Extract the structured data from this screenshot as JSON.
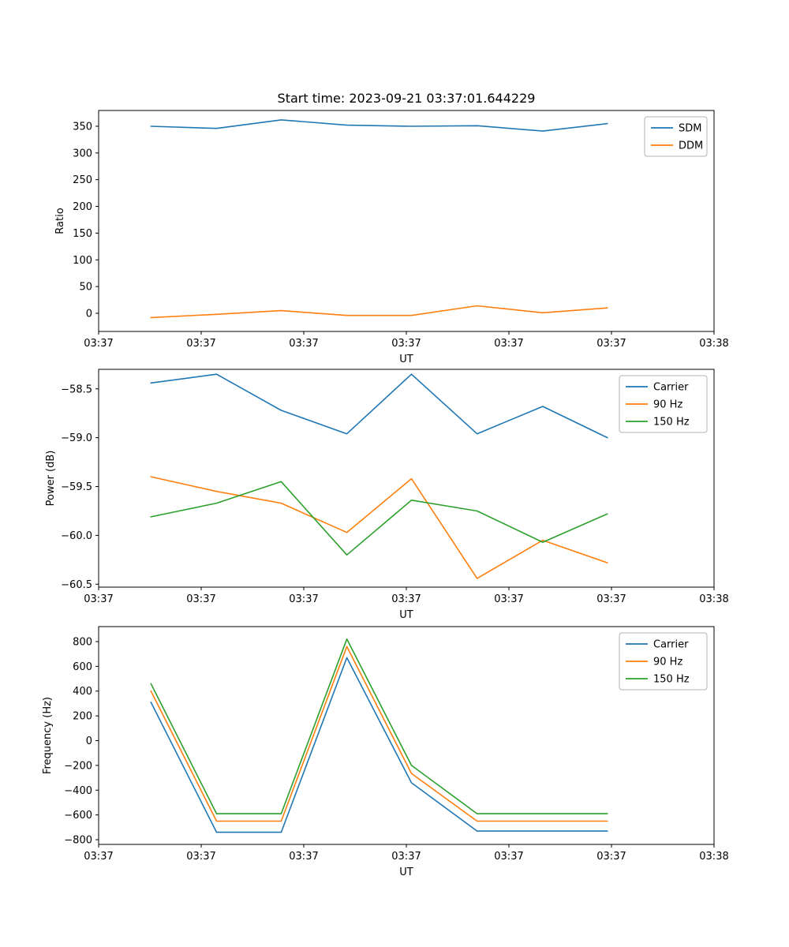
{
  "figure": {
    "title": "Start time: 2023-09-21 03:37:01.644229",
    "background": "#ffffff",
    "text_color": "#000000",
    "axis_color": "#000000",
    "legend_edge_color": "#b3b3b3"
  },
  "colors": {
    "blue": "#1f77b4",
    "orange": "#ff7f0e",
    "green": "#2ca02c"
  },
  "chart_data": [
    {
      "name": "ratio",
      "type": "line",
      "title": "Start time: 2023-09-21 03:37:01.644229",
      "xlabel": "UT",
      "ylabel": "Ratio",
      "legend_position": "upper right",
      "grid": false,
      "xlim": [
        0,
        60
      ],
      "ylim": [
        -34,
        379.5
      ],
      "x": [
        5.1,
        11.5,
        17.8,
        24.2,
        30.5,
        36.9,
        43.3,
        49.6
      ],
      "xtick_positions": [
        0,
        10,
        20,
        30,
        40,
        50,
        60
      ],
      "xtick_labels": [
        "03:37",
        "03:37",
        "03:37",
        "03:37",
        "03:37",
        "03:37",
        "03:38"
      ],
      "ytick_positions": [
        0,
        50,
        100,
        150,
        200,
        250,
        300,
        350
      ],
      "ytick_labels": [
        "0",
        "50",
        "100",
        "150",
        "200",
        "250",
        "300",
        "350"
      ],
      "series": [
        {
          "name": "SDM",
          "color": "#1f77b4",
          "values": [
            350,
            346,
            362,
            352,
            350,
            351,
            341,
            355
          ]
        },
        {
          "name": "DDM",
          "color": "#ff7f0e",
          "values": [
            -8,
            -2,
            5,
            -4,
            -4,
            14,
            1,
            10
          ]
        }
      ]
    },
    {
      "name": "power",
      "type": "line",
      "title": "",
      "xlabel": "UT",
      "ylabel": "Power (dB)",
      "legend_position": "upper right",
      "grid": false,
      "xlim": [
        0,
        60
      ],
      "ylim": [
        -60.53,
        -58.3
      ],
      "x": [
        5.1,
        11.5,
        17.8,
        24.2,
        30.5,
        36.9,
        43.3,
        49.6
      ],
      "xtick_positions": [
        0,
        10,
        20,
        30,
        40,
        50,
        60
      ],
      "xtick_labels": [
        "03:37",
        "03:37",
        "03:37",
        "03:37",
        "03:37",
        "03:37",
        "03:38"
      ],
      "ytick_positions": [
        -60.5,
        -60.0,
        -59.5,
        -59.0,
        -58.5
      ],
      "ytick_labels": [
        "−60.5",
        "−60.0",
        "−59.5",
        "−59.0",
        "−58.5"
      ],
      "series": [
        {
          "name": "Carrier",
          "color": "#1f77b4",
          "values": [
            -58.44,
            -58.35,
            -58.72,
            -58.96,
            -58.35,
            -58.96,
            -58.68,
            -59.0
          ]
        },
        {
          "name": "90 Hz",
          "color": "#ff7f0e",
          "values": [
            -59.4,
            -59.55,
            -59.67,
            -59.97,
            -59.42,
            -60.44,
            -60.05,
            -60.28
          ]
        },
        {
          "name": "150 Hz",
          "color": "#2ca02c",
          "values": [
            -59.81,
            -59.67,
            -59.45,
            -60.2,
            -59.64,
            -59.75,
            -60.07,
            -59.78
          ]
        }
      ]
    },
    {
      "name": "frequency",
      "type": "line",
      "title": "",
      "xlabel": "UT",
      "ylabel": "Frequency (Hz)",
      "legend_position": "upper right",
      "grid": false,
      "xlim": [
        0,
        60
      ],
      "ylim": [
        -838,
        921
      ],
      "x": [
        5.1,
        11.5,
        17.8,
        24.2,
        30.5,
        36.9,
        43.3,
        49.6
      ],
      "xtick_positions": [
        0,
        10,
        20,
        30,
        40,
        50,
        60
      ],
      "xtick_labels": [
        "03:37",
        "03:37",
        "03:37",
        "03:37",
        "03:37",
        "03:37",
        "03:38"
      ],
      "ytick_positions": [
        -800,
        -600,
        -400,
        -200,
        0,
        200,
        400,
        600,
        800
      ],
      "ytick_labels": [
        "−800",
        "−600",
        "−400",
        "−200",
        "0",
        "200",
        "400",
        "600",
        "800"
      ],
      "series": [
        {
          "name": "Carrier",
          "color": "#1f77b4",
          "values": [
            310,
            -740,
            -740,
            670,
            -340,
            -730,
            -730,
            -730
          ]
        },
        {
          "name": "90 Hz",
          "color": "#ff7f0e",
          "values": [
            400,
            -650,
            -650,
            760,
            -265,
            -650,
            -650,
            -650
          ]
        },
        {
          "name": "150 Hz",
          "color": "#2ca02c",
          "values": [
            460,
            -590,
            -590,
            820,
            -200,
            -590,
            -590,
            -590
          ]
        }
      ]
    }
  ]
}
